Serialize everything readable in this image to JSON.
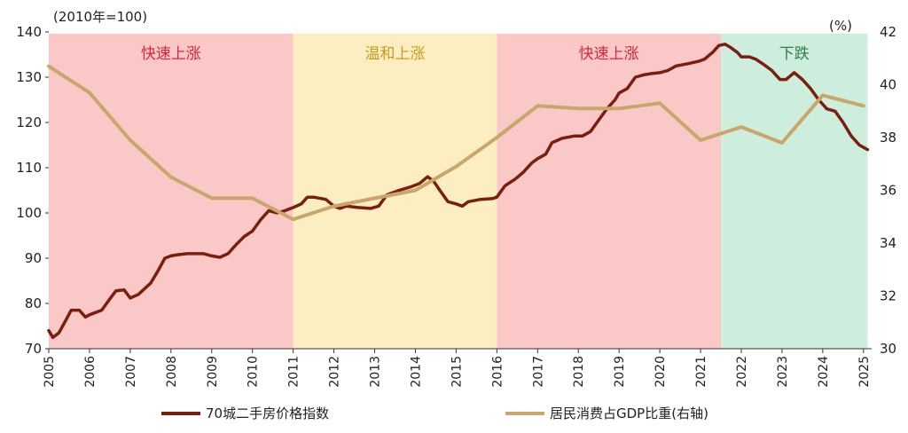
{
  "chart_data": {
    "type": "line",
    "title": "",
    "left_axis": {
      "unit_label": "(2010年=100)",
      "ylim": [
        70,
        140
      ],
      "ticks": [
        70,
        80,
        90,
        100,
        110,
        120,
        130,
        140
      ]
    },
    "right_axis": {
      "unit_label": "(%)",
      "ylim": [
        30,
        42
      ],
      "ticks": [
        30,
        32,
        34,
        36,
        38,
        40,
        42
      ]
    },
    "x_axis": {
      "xlim": [
        2005,
        2025.2
      ],
      "ticks": [
        "2005",
        "2006",
        "2007",
        "2008",
        "2009",
        "2010",
        "2011",
        "2012",
        "2013",
        "2014",
        "2015",
        "2016",
        "2017",
        "2018",
        "2019",
        "2020",
        "2021",
        "2022",
        "2023",
        "2024",
        "2025"
      ]
    },
    "phases": [
      {
        "label": "快速上涨",
        "start": 2005.0,
        "end": 2011.0,
        "fill": "#fbc8c8",
        "text_color": "#d8263a"
      },
      {
        "label": "温和上涨",
        "start": 2011.0,
        "end": 2016.0,
        "fill": "#fdeec2",
        "text_color": "#c89a1e"
      },
      {
        "label": "快速上涨",
        "start": 2016.0,
        "end": 2021.5,
        "fill": "#fbc8c8",
        "text_color": "#d8263a"
      },
      {
        "label": "下跌",
        "start": 2021.5,
        "end": 2025.1,
        "fill": "#cdeedd",
        "text_color": "#2e7d4a"
      }
    ],
    "series": [
      {
        "name": "70城二手房价格指数",
        "axis": "left",
        "color": "#7a1f0e",
        "points": [
          [
            2005.0,
            74
          ],
          [
            2005.1,
            72.5
          ],
          [
            2005.25,
            73.5
          ],
          [
            2005.4,
            76
          ],
          [
            2005.55,
            78.5
          ],
          [
            2005.75,
            78.5
          ],
          [
            2005.9,
            77
          ],
          [
            2006.0,
            77.5
          ],
          [
            2006.15,
            78
          ],
          [
            2006.3,
            78.5
          ],
          [
            2006.5,
            81
          ],
          [
            2006.65,
            82.8
          ],
          [
            2006.85,
            83
          ],
          [
            2007.0,
            81.2
          ],
          [
            2007.2,
            82
          ],
          [
            2007.5,
            84.5
          ],
          [
            2007.7,
            87.5
          ],
          [
            2007.85,
            90
          ],
          [
            2008.0,
            90.5
          ],
          [
            2008.2,
            90.8
          ],
          [
            2008.4,
            91
          ],
          [
            2008.6,
            91
          ],
          [
            2008.8,
            91
          ],
          [
            2009.0,
            90.5
          ],
          [
            2009.2,
            90.2
          ],
          [
            2009.4,
            91
          ],
          [
            2009.6,
            93
          ],
          [
            2009.8,
            94.8
          ],
          [
            2010.0,
            96
          ],
          [
            2010.2,
            98.5
          ],
          [
            2010.4,
            100.5
          ],
          [
            2010.6,
            100
          ],
          [
            2010.8,
            100.5
          ],
          [
            2011.0,
            101.2
          ],
          [
            2011.2,
            102
          ],
          [
            2011.35,
            103.5
          ],
          [
            2011.5,
            103.5
          ],
          [
            2011.8,
            103
          ],
          [
            2012.0,
            101.5
          ],
          [
            2012.15,
            101
          ],
          [
            2012.3,
            101.5
          ],
          [
            2012.6,
            101.2
          ],
          [
            2012.9,
            101
          ],
          [
            2013.1,
            101.5
          ],
          [
            2013.3,
            104
          ],
          [
            2013.6,
            105
          ],
          [
            2013.9,
            105.8
          ],
          [
            2014.1,
            106.5
          ],
          [
            2014.3,
            108
          ],
          [
            2014.45,
            107
          ],
          [
            2014.6,
            105
          ],
          [
            2014.8,
            102.5
          ],
          [
            2015.0,
            102
          ],
          [
            2015.15,
            101.5
          ],
          [
            2015.3,
            102.5
          ],
          [
            2015.6,
            103
          ],
          [
            2015.9,
            103.2
          ],
          [
            2016.0,
            103.5
          ],
          [
            2016.2,
            106
          ],
          [
            2016.45,
            107.5
          ],
          [
            2016.65,
            109
          ],
          [
            2016.85,
            111
          ],
          [
            2017.0,
            112
          ],
          [
            2017.2,
            113
          ],
          [
            2017.35,
            115.5
          ],
          [
            2017.6,
            116.5
          ],
          [
            2017.9,
            117
          ],
          [
            2018.1,
            117
          ],
          [
            2018.3,
            118
          ],
          [
            2018.5,
            120.5
          ],
          [
            2018.7,
            123
          ],
          [
            2018.9,
            125
          ],
          [
            2019.0,
            126.5
          ],
          [
            2019.2,
            127.5
          ],
          [
            2019.4,
            130
          ],
          [
            2019.6,
            130.5
          ],
          [
            2019.8,
            130.8
          ],
          [
            2020.0,
            131
          ],
          [
            2020.2,
            131.5
          ],
          [
            2020.4,
            132.5
          ],
          [
            2020.7,
            133
          ],
          [
            2020.95,
            133.5
          ],
          [
            2021.1,
            134
          ],
          [
            2021.3,
            135.5
          ],
          [
            2021.45,
            137
          ],
          [
            2021.6,
            137.3
          ],
          [
            2021.75,
            136.5
          ],
          [
            2021.9,
            135.5
          ],
          [
            2022.0,
            134.5
          ],
          [
            2022.2,
            134.5
          ],
          [
            2022.35,
            134
          ],
          [
            2022.55,
            132.8
          ],
          [
            2022.75,
            131.5
          ],
          [
            2022.95,
            129.5
          ],
          [
            2023.1,
            129.5
          ],
          [
            2023.3,
            131
          ],
          [
            2023.5,
            129.5
          ],
          [
            2023.7,
            127.5
          ],
          [
            2023.9,
            125
          ],
          [
            2024.1,
            123
          ],
          [
            2024.3,
            122.5
          ],
          [
            2024.5,
            120
          ],
          [
            2024.7,
            117
          ],
          [
            2024.9,
            115
          ],
          [
            2025.1,
            114
          ]
        ]
      },
      {
        "name": "居民消费占GDP比重(右轴)",
        "axis": "right",
        "color": "#c9a66b",
        "points": [
          [
            2005,
            40.7
          ],
          [
            2006,
            39.7
          ],
          [
            2007,
            37.9
          ],
          [
            2008,
            36.5
          ],
          [
            2009,
            35.7
          ],
          [
            2010,
            35.7
          ],
          [
            2011,
            34.9
          ],
          [
            2012,
            35.4
          ],
          [
            2013,
            35.7
          ],
          [
            2014,
            36.0
          ],
          [
            2015,
            36.9
          ],
          [
            2016,
            38.0
          ],
          [
            2017,
            39.2
          ],
          [
            2018,
            39.1
          ],
          [
            2019,
            39.1
          ],
          [
            2020,
            39.3
          ],
          [
            2021,
            37.9
          ],
          [
            2022,
            38.4
          ],
          [
            2023,
            37.8
          ],
          [
            2024,
            39.6
          ],
          [
            2025,
            39.2
          ]
        ]
      }
    ]
  }
}
